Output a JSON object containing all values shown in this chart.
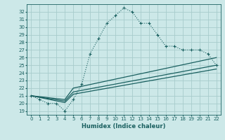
{
  "xlabel": "Humidex (Indice chaleur)",
  "bg_color": "#cce8e8",
  "grid_color": "#a8cccc",
  "line_color": "#1a6060",
  "xlim": [
    -0.5,
    22.5
  ],
  "ylim": [
    18.5,
    33.0
  ],
  "yticks": [
    19,
    20,
    21,
    22,
    23,
    24,
    25,
    26,
    27,
    28,
    29,
    30,
    31,
    32
  ],
  "xticks": [
    0,
    1,
    2,
    3,
    4,
    5,
    6,
    7,
    8,
    9,
    10,
    11,
    12,
    13,
    14,
    15,
    16,
    17,
    18,
    19,
    20,
    21,
    22
  ],
  "main_x": [
    0,
    1,
    2,
    3,
    4,
    5,
    6,
    7,
    8,
    9,
    10,
    11,
    12,
    13,
    14,
    15,
    16,
    17,
    18,
    19,
    20,
    21,
    22
  ],
  "main_y": [
    21.0,
    20.5,
    20.0,
    20.0,
    19.0,
    20.5,
    22.5,
    26.5,
    28.5,
    30.5,
    31.5,
    32.5,
    32.0,
    30.5,
    30.5,
    29.0,
    27.5,
    27.5,
    27.0,
    27.0,
    27.0,
    26.5,
    25.0
  ],
  "line2_x": [
    0,
    4,
    5,
    22
  ],
  "line2_y": [
    21.0,
    20.5,
    22.0,
    26.0
  ],
  "line3_x": [
    0,
    4,
    5,
    22
  ],
  "line3_y": [
    21.0,
    20.3,
    21.5,
    25.0
  ],
  "line4_x": [
    0,
    4,
    5,
    22
  ],
  "line4_y": [
    21.0,
    20.1,
    21.2,
    24.5
  ]
}
